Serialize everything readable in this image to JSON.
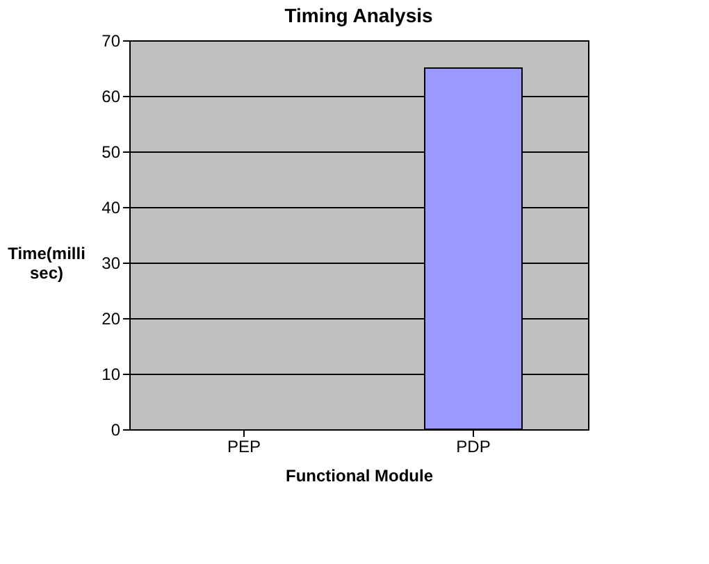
{
  "chart_data": {
    "type": "bar",
    "title": "Timing Analysis",
    "xlabel": "Functional Module",
    "ylabel": "Time(milli sec)",
    "categories": [
      "PEP",
      "PDP"
    ],
    "series": [
      {
        "color": "#9999ff",
        "values": [
          null,
          65
        ]
      }
    ],
    "ylim": [
      0,
      70
    ],
    "yticks": [
      0,
      10,
      20,
      30,
      40,
      50,
      60,
      70
    ],
    "grid": "y",
    "legend": false
  }
}
